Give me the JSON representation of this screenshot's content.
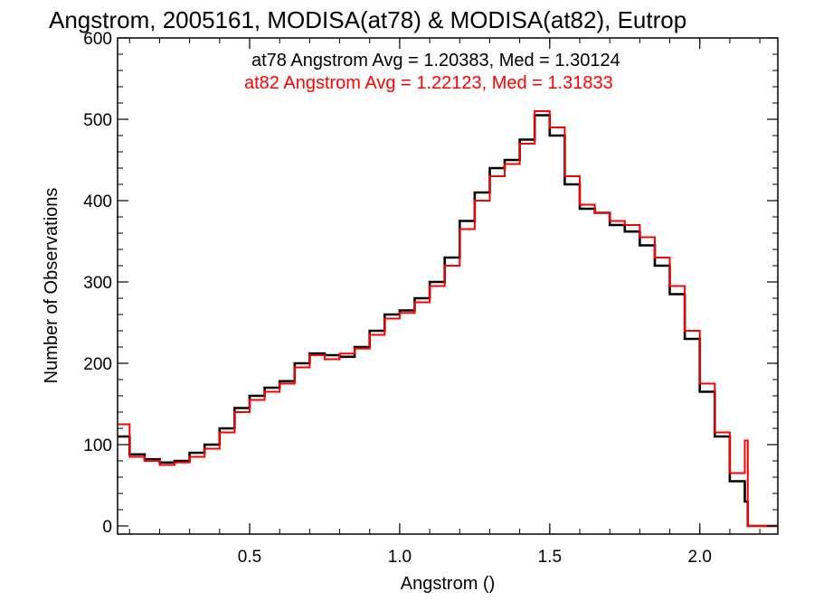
{
  "chart_data": {
    "type": "line",
    "title": "Angstrom, 2005161, MODISA(at78) & MODISA(at82), Eutrop",
    "xlabel": "Angstrom ()",
    "ylabel": "Number of Observations",
    "xlim": [
      0.06,
      2.26
    ],
    "ylim": [
      -10,
      600
    ],
    "xticks": [
      "0.5",
      "1.0",
      "1.5",
      "2.0"
    ],
    "yticks": [
      "0",
      "100",
      "200",
      "300",
      "400",
      "500",
      "600"
    ],
    "annotations": [
      {
        "text": "at78 Angstrom Avg = 1.20383, Med = 1.30124",
        "color": "#000000"
      },
      {
        "text": "at82 Angstrom Avg = 1.22123, Med = 1.31833",
        "color": "#ff0000"
      }
    ],
    "series": [
      {
        "color": "#000000",
        "step": "histogram",
        "x": [
          0.06,
          0.1,
          0.15,
          0.2,
          0.25,
          0.3,
          0.35,
          0.4,
          0.45,
          0.5,
          0.55,
          0.6,
          0.65,
          0.7,
          0.75,
          0.8,
          0.85,
          0.9,
          0.95,
          1.0,
          1.05,
          1.1,
          1.15,
          1.2,
          1.25,
          1.3,
          1.35,
          1.4,
          1.45,
          1.5,
          1.55,
          1.6,
          1.65,
          1.7,
          1.75,
          1.8,
          1.85,
          1.9,
          1.95,
          2.0,
          2.05,
          2.1,
          2.15,
          2.16,
          2.26
        ],
        "y": [
          110,
          88,
          82,
          78,
          80,
          90,
          100,
          120,
          145,
          160,
          170,
          178,
          200,
          212,
          210,
          208,
          220,
          240,
          260,
          265,
          280,
          300,
          330,
          375,
          410,
          440,
          450,
          475,
          505,
          480,
          420,
          390,
          385,
          370,
          362,
          345,
          320,
          285,
          230,
          165,
          110,
          55,
          30,
          0,
          0
        ]
      },
      {
        "color": "#ff0000",
        "step": "histogram",
        "x": [
          0.06,
          0.1,
          0.15,
          0.2,
          0.25,
          0.3,
          0.35,
          0.4,
          0.45,
          0.5,
          0.55,
          0.6,
          0.65,
          0.7,
          0.75,
          0.8,
          0.85,
          0.9,
          0.95,
          1.0,
          1.05,
          1.1,
          1.15,
          1.2,
          1.25,
          1.3,
          1.35,
          1.4,
          1.45,
          1.5,
          1.55,
          1.6,
          1.65,
          1.7,
          1.75,
          1.8,
          1.85,
          1.9,
          1.95,
          2.0,
          2.05,
          2.1,
          2.15,
          2.16,
          2.26
        ],
        "y": [
          125,
          85,
          80,
          75,
          78,
          85,
          95,
          115,
          140,
          155,
          165,
          175,
          195,
          210,
          205,
          212,
          218,
          235,
          255,
          262,
          275,
          295,
          320,
          365,
          400,
          430,
          445,
          470,
          510,
          490,
          430,
          395,
          385,
          375,
          370,
          355,
          330,
          295,
          240,
          175,
          115,
          65,
          105,
          0,
          0
        ]
      }
    ]
  }
}
